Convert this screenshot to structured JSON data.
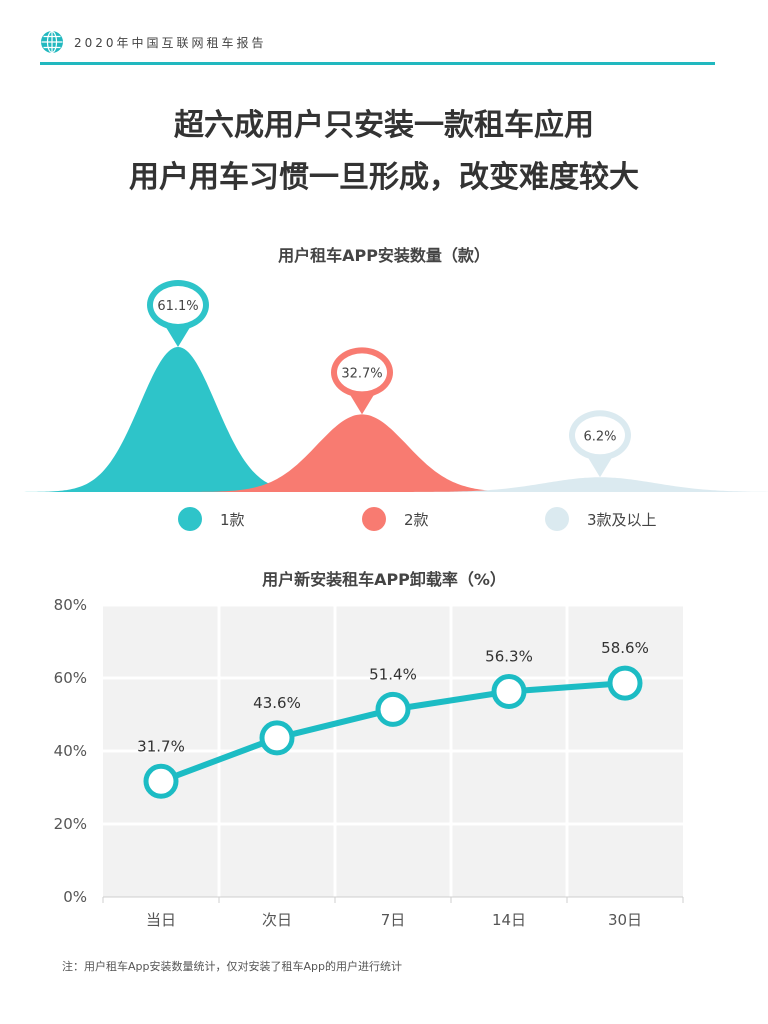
{
  "header": {
    "title": "2020年中国互联网租车报告",
    "icon": "globe-icon",
    "accent": "#21b8bf"
  },
  "headline": {
    "line1": "超六成用户只安装一款租车应用",
    "line2": "用户用车习惯一旦形成，改变难度较大"
  },
  "chart_data": [
    {
      "type": "area",
      "title": "用户租车APP安装数量（款）",
      "categories": [
        "1款",
        "2款",
        "3款及以上"
      ],
      "values": [
        61.1,
        32.7,
        6.2
      ],
      "value_labels": [
        "61.1%",
        "32.7%",
        "6.2%"
      ],
      "colors": [
        "#2ec4c9",
        "#f87b71",
        "#dbeaf0"
      ],
      "legend": "bottom"
    },
    {
      "type": "line",
      "title": "用户新安装租车APP卸载率（%）",
      "categories": [
        "当日",
        "次日",
        "7日",
        "14日",
        "30日"
      ],
      "values": [
        31.7,
        43.6,
        51.4,
        56.3,
        58.6
      ],
      "value_labels": [
        "31.7%",
        "43.6%",
        "51.4%",
        "56.3%",
        "58.6%"
      ],
      "ylim": [
        0,
        80
      ],
      "yticks": [
        0,
        20,
        40,
        60,
        80
      ],
      "ytick_labels": [
        "0%",
        "20%",
        "40%",
        "60%",
        "80%"
      ],
      "grid": true,
      "color": "#1cbcc4"
    }
  ],
  "footnote": "注：用户租车App安装数量统计，仅对安装了租车App的用户进行统计"
}
